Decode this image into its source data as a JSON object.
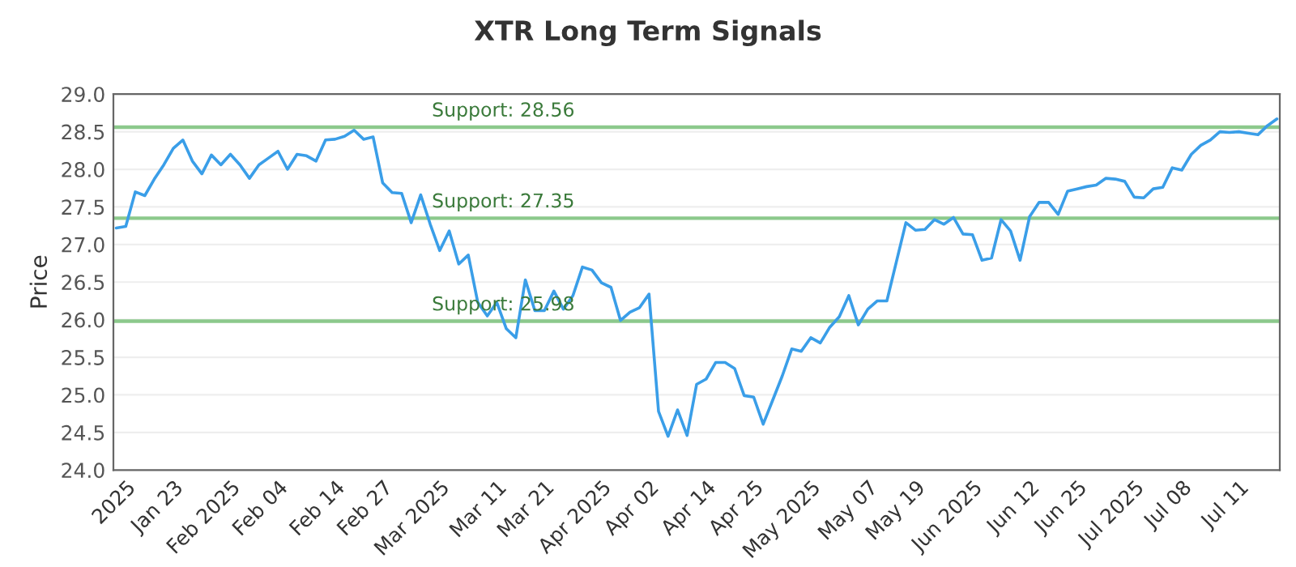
{
  "chart_data": {
    "type": "line",
    "title": "XTR Long Term Signals",
    "ylabel": "Price",
    "categories": [
      null,
      "2025",
      null,
      null,
      null,
      null,
      "Jan 23",
      null,
      null,
      null,
      null,
      null,
      "Feb 2025",
      null,
      null,
      null,
      null,
      "Feb 04",
      null,
      null,
      null,
      null,
      null,
      "Feb 14",
      null,
      null,
      null,
      null,
      "Feb 27",
      null,
      null,
      null,
      null,
      null,
      "Mar 2025",
      null,
      null,
      null,
      null,
      null,
      "Mar 11",
      null,
      null,
      null,
      null,
      "Mar 21",
      null,
      null,
      null,
      null,
      null,
      "Apr 2025",
      null,
      null,
      null,
      null,
      "Apr 02",
      null,
      null,
      null,
      null,
      null,
      "Apr 14",
      null,
      null,
      null,
      null,
      "Apr 25",
      null,
      null,
      null,
      null,
      null,
      "May 2025",
      null,
      null,
      null,
      null,
      null,
      "May 07",
      null,
      null,
      null,
      null,
      "May 19",
      null,
      null,
      null,
      null,
      null,
      "Jun 2025",
      null,
      null,
      null,
      null,
      null,
      "Jun 12",
      null,
      null,
      null,
      null,
      "Jun 25",
      null,
      null,
      null,
      null,
      null,
      "Jul 2025",
      null,
      null,
      null,
      null,
      "Jul 08",
      null,
      null,
      null,
      null,
      null,
      "Jul 11",
      null,
      null,
      null,
      null
    ],
    "series": [
      {
        "color": "#3a9ee8",
        "values": [
          27.22,
          27.24,
          27.7,
          27.65,
          27.87,
          28.06,
          28.28,
          28.39,
          28.11,
          27.94,
          28.19,
          28.06,
          28.2,
          28.06,
          27.88,
          28.06,
          28.15,
          28.24,
          28.0,
          28.2,
          28.18,
          28.11,
          28.39,
          28.4,
          28.44,
          28.52,
          28.4,
          28.43,
          27.82,
          27.69,
          27.68,
          27.29,
          27.66,
          27.27,
          26.92,
          27.18,
          26.74,
          26.86,
          26.23,
          26.05,
          26.23,
          25.88,
          25.76,
          26.53,
          26.12,
          26.12,
          26.38,
          26.14,
          26.32,
          26.7,
          26.66,
          26.49,
          26.43,
          25.99,
          26.1,
          26.16,
          26.34,
          24.78,
          24.45,
          24.8,
          24.46,
          25.14,
          25.21,
          25.43,
          25.43,
          25.35,
          24.99,
          24.97,
          24.61,
          24.93,
          25.25,
          25.61,
          25.58,
          25.76,
          25.69,
          25.9,
          26.04,
          26.32,
          25.93,
          26.14,
          26.25,
          26.25,
          26.77,
          27.29,
          27.19,
          27.2,
          27.33,
          27.27,
          27.36,
          27.14,
          27.13,
          26.79,
          26.82,
          27.33,
          27.18,
          26.79,
          27.37,
          27.56,
          27.56,
          27.4,
          27.71,
          27.74,
          27.77,
          27.79,
          27.88,
          27.87,
          27.84,
          27.63,
          27.62,
          27.74,
          27.76,
          28.02,
          27.99,
          28.2,
          28.32,
          28.39,
          28.5,
          28.49,
          28.5,
          28.48,
          28.46,
          28.58,
          28.67
        ]
      }
    ],
    "ylim": [
      24.0,
      29.0
    ],
    "yticks": [
      {
        "value": 24.0,
        "label": "24.0"
      },
      {
        "value": 24.5,
        "label": "24.5"
      },
      {
        "value": 25.0,
        "label": "25.0"
      },
      {
        "value": 25.5,
        "label": "25.5"
      },
      {
        "value": 26.0,
        "label": "26.0"
      },
      {
        "value": 26.5,
        "label": "26.5"
      },
      {
        "value": 27.0,
        "label": "27.0"
      },
      {
        "value": 27.5,
        "label": "27.5"
      },
      {
        "value": 28.0,
        "label": "28.0"
      },
      {
        "value": 28.5,
        "label": "28.5"
      },
      {
        "value": 29.0,
        "label": "29.0"
      }
    ],
    "ref_lines": [
      {
        "axis": "y",
        "value": 28.56,
        "label": "Support: 28.56",
        "color": "#8cc98c"
      },
      {
        "axis": "y",
        "value": 27.35,
        "label": "Support: 27.35",
        "color": "#8cc98c"
      },
      {
        "axis": "y",
        "value": 25.98,
        "label": "Support: 25.98",
        "color": "#8cc98c"
      }
    ],
    "grid": "y",
    "marker": "none",
    "line_style": "solid",
    "legend": false
  }
}
